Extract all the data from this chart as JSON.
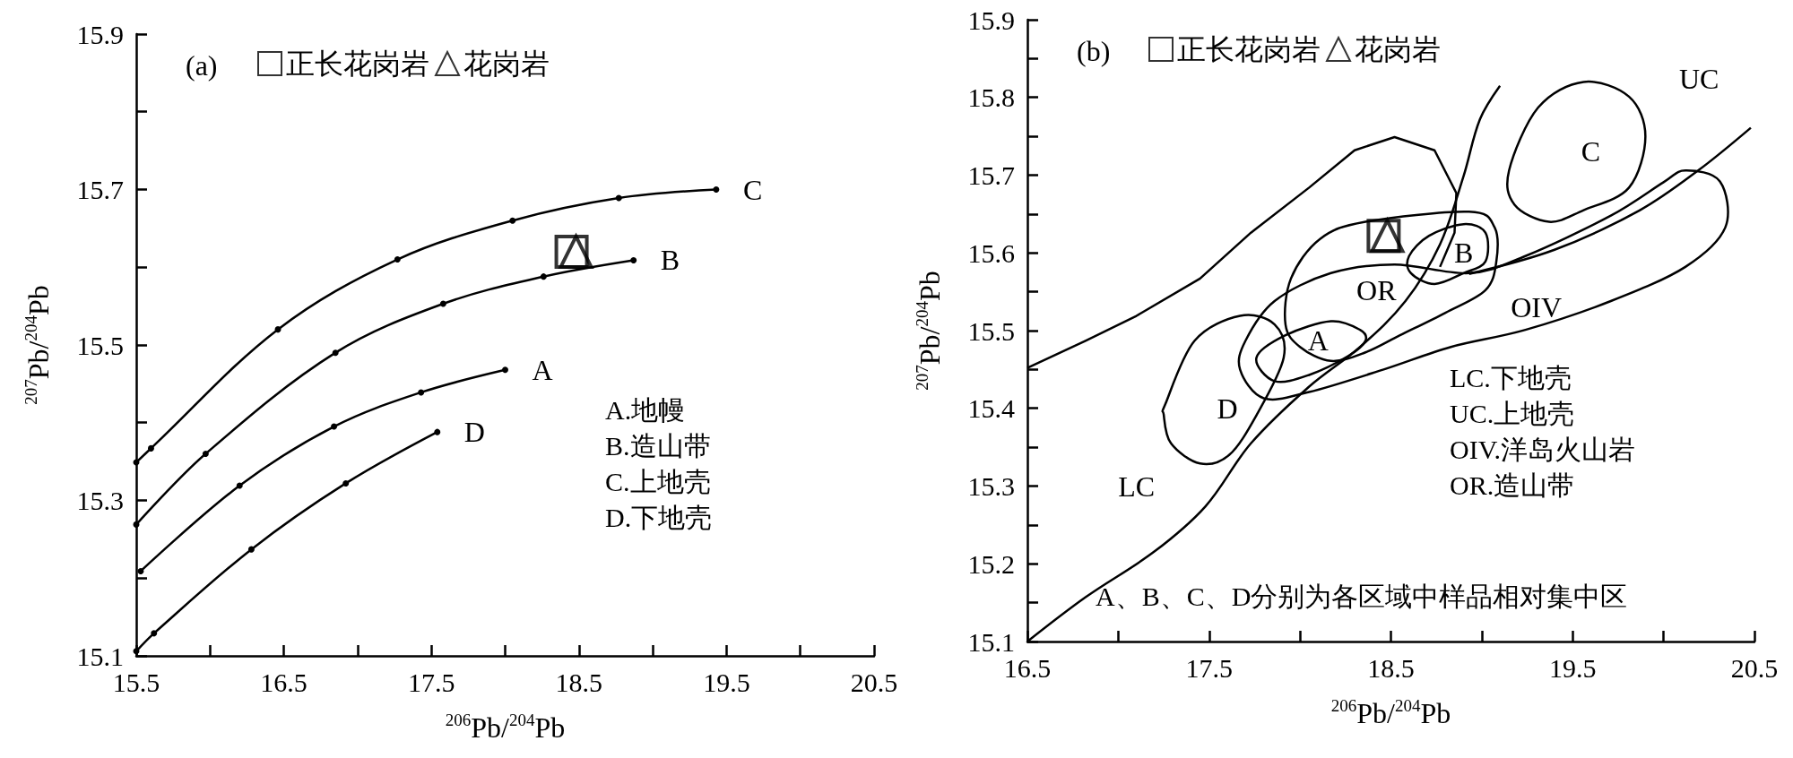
{
  "chart_data": [
    {
      "type": "line",
      "title": "(a)",
      "xlabel": "$^{206}$Pb/$^{204}$Pb",
      "ylabel": "$^{207}$Pb/$^{204}$Pb",
      "legend": "top",
      "xlim": [
        15.5,
        20.5
      ],
      "ylim": [
        15.1,
        15.9
      ],
      "xticks": [
        15.5,
        {
          "value": 16,
          "label": null
        },
        16.5,
        {
          "value": 17,
          "label": null
        },
        17.5,
        {
          "value": 18,
          "label": null
        },
        18.5,
        {
          "value": 19,
          "label": null
        },
        19.5,
        {
          "value": 20,
          "label": null
        },
        20.5
      ],
      "yticks": [
        15.1,
        {
          "value": 15.2,
          "label": null
        },
        15.3,
        {
          "value": 15.4,
          "label": null
        },
        15.5,
        {
          "value": 15.6,
          "label": null
        },
        15.7,
        {
          "value": 15.8,
          "label": null
        },
        15.9
      ],
      "series": [
        {
          "name": "C",
          "marker": "circle",
          "color": "#000000",
          "x": [
            15.5,
            15.6,
            16.46,
            17.27,
            18.05,
            18.77,
            19.43
          ],
          "values": [
            15.349,
            15.367,
            15.52,
            15.61,
            15.66,
            15.689,
            15.7
          ]
        },
        {
          "name": "B",
          "marker": "circle",
          "color": "#000000",
          "x": [
            15.5,
            15.97,
            16.85,
            17.58,
            18.26,
            18.87
          ],
          "values": [
            15.269,
            15.36,
            15.49,
            15.553,
            15.588,
            15.609
          ]
        },
        {
          "name": "A",
          "marker": "circle",
          "color": "#000000",
          "x": [
            15.53,
            16.2,
            16.84,
            17.43,
            18.0
          ],
          "values": [
            15.209,
            15.319,
            15.395,
            15.439,
            15.468
          ]
        },
        {
          "name": "D",
          "marker": "circle",
          "color": "#000000",
          "x": [
            15.5,
            15.62,
            16.28,
            16.92,
            17.54
          ],
          "values": [
            15.106,
            15.129,
            15.237,
            15.322,
            15.388
          ]
        },
        {
          "name": "正长花岗岩",
          "type": "scatter",
          "marker": "square",
          "color": "#000000",
          "x": [
            18.45
          ],
          "values": [
            15.62
          ]
        },
        {
          "name": "花岗岩",
          "type": "scatter",
          "marker": "triangle",
          "color": "#000000",
          "x": [
            18.48
          ],
          "values": [
            15.62
          ]
        }
      ],
      "annotations": [
        "A.地幔",
        "B.造山带",
        "C.上地壳",
        "D.下地壳"
      ]
    },
    {
      "type": "line",
      "title": "(b)",
      "xlabel": "$^{206}$Pb/$^{204}$Pb",
      "ylabel": "$^{207}$Pb/$^{204}$Pb",
      "legend": "top",
      "xlim": [
        16.5,
        20.5
      ],
      "ylim": [
        15.1,
        15.9
      ],
      "xticks": [
        16.5,
        {
          "value": 17,
          "label": null
        },
        17.5,
        {
          "value": 18,
          "label": null
        },
        18.5,
        {
          "value": 19,
          "label": null
        },
        19.5,
        {
          "value": 20,
          "label": null
        },
        20.5
      ],
      "yticks": [
        15.1,
        {
          "value": 15.15,
          "label": null
        },
        15.2,
        {
          "value": 15.25,
          "label": null
        },
        15.3,
        {
          "value": 15.35,
          "label": null
        },
        15.4,
        {
          "value": 15.45,
          "label": null
        },
        15.5,
        {
          "value": 15.55,
          "label": null
        },
        15.6,
        {
          "value": 15.65,
          "label": null
        },
        15.7,
        {
          "value": 15.75,
          "label": null
        },
        15.8,
        {
          "value": 15.85,
          "label": null
        },
        15.9
      ],
      "series": [
        {
          "marker": "none",
          "color": "#000000",
          "x": [
            16.5,
            16.82,
            17.1,
            17.45,
            17.73,
            18.05,
            18.3,
            18.52,
            18.74,
            18.86,
            18.85,
            18.77
          ],
          "values": [
            15.452,
            15.487,
            15.519,
            15.567,
            15.626,
            15.684,
            15.732,
            15.749,
            15.732,
            15.677,
            15.626,
            15.582
          ]
        },
        {
          "marker": "none",
          "color": "#000000",
          "x": [
            16.5,
            16.82,
            17.2,
            17.48,
            17.73,
            18.05,
            18.33,
            18.58,
            18.77,
            18.9,
            18.99,
            19.1
          ],
          "values": [
            15.1,
            15.157,
            15.216,
            15.274,
            15.355,
            15.428,
            15.479,
            15.538,
            15.611,
            15.699,
            15.772,
            15.815
          ]
        },
        {
          "name": "UC",
          "marker": "none",
          "color": "#000000",
          "x": [
            18.93,
            19.4,
            19.87,
            20.19,
            20.48
          ],
          "values": [
            15.573,
            15.604,
            15.655,
            15.706,
            15.761
          ]
        },
        {
          "name": "正长花岗岩",
          "type": "scatter",
          "marker": "square",
          "color": "#000000",
          "x": [
            18.46
          ],
          "values": [
            15.622
          ]
        },
        {
          "name": "花岗岩",
          "type": "scatter",
          "marker": "triangle",
          "color": "#000000",
          "x": [
            18.48
          ],
          "values": [
            15.622
          ]
        }
      ],
      "annotations": [
        "C",
        "B",
        "OR",
        "OIV",
        "A",
        "D",
        "LC",
        "LC.下地壳",
        "UC.上地壳",
        "OIV.洋岛火山岩",
        "OR.造山带",
        "A、B、C、D分别为各区域中样品相对集中区"
      ]
    }
  ]
}
